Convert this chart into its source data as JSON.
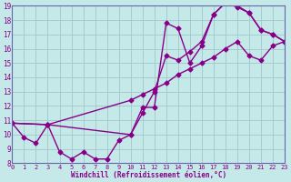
{
  "xlabel": "Windchill (Refroidissement éolien,°C)",
  "bg_color": "#c5e8e8",
  "grid_color": "#a0c8c8",
  "line_color": "#880088",
  "spine_color": "#6666aa",
  "xmin": 0,
  "xmax": 23,
  "ymin": 8,
  "ymax": 19,
  "line1_x": [
    0,
    1,
    2,
    3,
    4,
    5,
    6,
    7,
    8,
    9,
    10,
    11,
    12,
    13,
    14,
    15,
    16,
    17,
    18,
    19,
    20,
    21,
    22,
    23
  ],
  "line1_y": [
    10.8,
    9.8,
    9.4,
    10.7,
    8.8,
    8.3,
    8.8,
    8.3,
    8.3,
    9.6,
    10.0,
    11.9,
    11.9,
    17.8,
    17.4,
    15.0,
    16.2,
    18.4,
    19.2,
    19.0,
    18.5,
    17.3,
    17.0,
    16.5
  ],
  "line2_x": [
    0,
    3,
    10,
    11,
    12,
    13,
    14,
    15,
    16,
    17,
    18,
    19,
    20,
    21,
    22,
    23
  ],
  "line2_y": [
    10.8,
    10.7,
    12.4,
    12.8,
    13.2,
    13.6,
    14.2,
    14.6,
    15.0,
    15.4,
    16.0,
    16.5,
    15.5,
    15.2,
    16.2,
    16.5
  ],
  "line3_x": [
    0,
    3,
    10,
    11,
    12,
    13,
    14,
    15,
    16,
    17,
    18,
    19,
    20,
    21,
    22,
    23
  ],
  "line3_y": [
    10.8,
    10.7,
    10.0,
    11.5,
    13.0,
    15.5,
    15.2,
    15.8,
    16.5,
    18.4,
    19.2,
    18.9,
    18.5,
    17.3,
    17.0,
    16.5
  ]
}
